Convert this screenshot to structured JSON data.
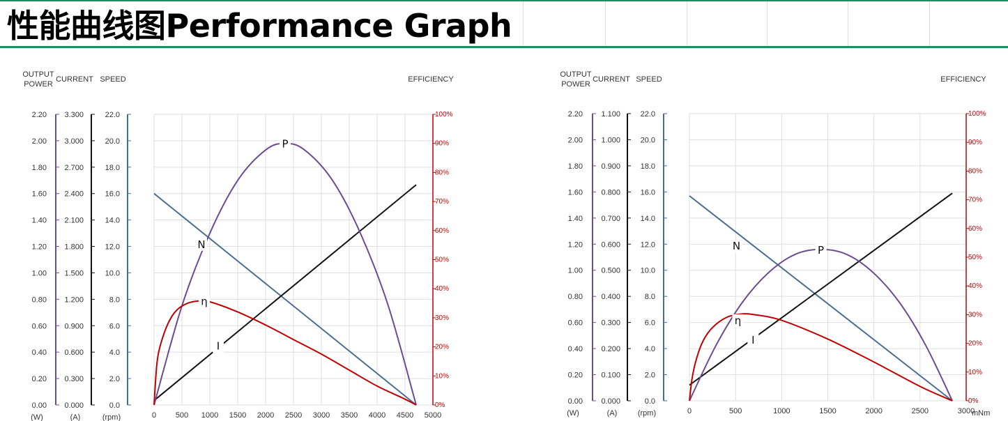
{
  "title": "性能曲线图Performance Graph",
  "colors": {
    "accent": "#1e8f5c",
    "power_axis": "#6a4c93",
    "current_axis": "#111111",
    "speed_axis": "#3f6f9a",
    "efficiency_axis": "#c00000",
    "curve_N": "#4a6f94",
    "curve_P": "#6a4c93",
    "curve_I": "#111111",
    "curve_eta": "#c00000"
  },
  "chart_data": [
    {
      "type": "line",
      "axis_titles": {
        "power": [
          "OUTPUT",
          "POWER"
        ],
        "current": "CURRENT",
        "speed": "SPEED",
        "efficiency": "EFFICIENCY"
      },
      "unit_labels": {
        "power": "(W)",
        "current": "(A)",
        "speed": "(rpm)"
      },
      "x_unit": "",
      "power_ticks": [
        "0.00",
        "0.20",
        "0.40",
        "0.60",
        "0.80",
        "1.00",
        "1.20",
        "1.40",
        "1.60",
        "1.80",
        "2.00",
        "2.20"
      ],
      "current_ticks": [
        "0.000",
        "0.300",
        "0.600",
        "0.900",
        "1.200",
        "1.500",
        "1.800",
        "2.100",
        "2.400",
        "2.700",
        "3.000",
        "3.300"
      ],
      "speed_ticks": [
        "0.0",
        "2.0",
        "4.0",
        "6.0",
        "8.0",
        "10.0",
        "12.0",
        "14.0",
        "16.0",
        "18.0",
        "20.0",
        "22.0"
      ],
      "efficiency_ticks": [
        "0%",
        "10%",
        "20%",
        "30%",
        "40%",
        "50%",
        "60%",
        "70%",
        "80%",
        "90%",
        "100%"
      ],
      "x_ticks": [
        "0",
        "500",
        "1000",
        "1500",
        "2000",
        "2500",
        "3000",
        "3500",
        "4000",
        "4500",
        "5000"
      ],
      "xlim": [
        0,
        5000
      ],
      "power_lim": [
        0,
        2.2
      ],
      "eff_lim": [
        0,
        100
      ],
      "grid": true,
      "series": [
        {
          "name": "N",
          "axis": "speed",
          "x": [
            0,
            4700
          ],
          "y": [
            16.0,
            0.0
          ]
        },
        {
          "name": "I",
          "axis": "current",
          "x": [
            0,
            4700
          ],
          "y": [
            0.05,
            2.5
          ]
        },
        {
          "name": "P",
          "axis": "power",
          "x": [
            0,
            500,
            1000,
            1500,
            2000,
            2350,
            2700,
            3200,
            3700,
            4200,
            4700
          ],
          "y": [
            0.0,
            0.75,
            1.3,
            1.7,
            1.93,
            1.98,
            1.93,
            1.7,
            1.3,
            0.75,
            0.0
          ]
        },
        {
          "name": "η",
          "axis": "efficiency",
          "x": [
            0,
            50,
            120,
            250,
            400,
            600,
            800,
            1000,
            1500,
            2000,
            2500,
            3000,
            3500,
            4000,
            4500,
            4700
          ],
          "y": [
            0,
            14,
            21,
            28,
            32.5,
            35,
            35.8,
            35.5,
            32,
            27.5,
            22.5,
            17.5,
            12,
            6.5,
            2,
            0
          ]
        }
      ],
      "curve_labels": [
        {
          "text": "P",
          "x": 2350,
          "y": 1.98,
          "axis": "power"
        },
        {
          "text": "N",
          "x": 850,
          "y": 1.22,
          "axis": "power"
        },
        {
          "text": "η",
          "x": 900,
          "y": 0.79,
          "axis": "power"
        },
        {
          "text": "I",
          "x": 1150,
          "y": 0.45,
          "axis": "power"
        }
      ]
    },
    {
      "type": "line",
      "axis_titles": {
        "power": [
          "OUTPUT",
          "POWER"
        ],
        "current": "CURRENT",
        "speed": "SPEED",
        "efficiency": "EFFICIENCY"
      },
      "unit_labels": {
        "power": "(W)",
        "current": "(A)",
        "speed": "(rpm)"
      },
      "x_unit": "mNm",
      "power_ticks": [
        "0.00",
        "0.20",
        "0.40",
        "0.60",
        "0.80",
        "1.00",
        "1.20",
        "1.40",
        "1.60",
        "1.80",
        "2.00",
        "2.20"
      ],
      "current_ticks": [
        "0.000",
        "0.100",
        "0.200",
        "0.300",
        "0.400",
        "0.500",
        "0.600",
        "0.700",
        "0.800",
        "0.900",
        "1.000",
        "1.100"
      ],
      "speed_ticks": [
        "0.0",
        "2.0",
        "4.0",
        "6.0",
        "8.0",
        "10.0",
        "12.0",
        "14.0",
        "16.0",
        "18.0",
        "20.0",
        "22.0"
      ],
      "efficiency_ticks": [
        "0%",
        "10%",
        "20%",
        "30%",
        "40%",
        "50%",
        "60%",
        "70%",
        "80%",
        "90%",
        "100%"
      ],
      "x_ticks": [
        "0",
        "500",
        "1000",
        "1500",
        "2000",
        "2500",
        "3000"
      ],
      "xlim": [
        0,
        3000
      ],
      "power_lim": [
        0,
        2.2
      ],
      "eff_lim": [
        0,
        100
      ],
      "grid": true,
      "series": [
        {
          "name": "N",
          "axis": "speed",
          "x": [
            0,
            2850
          ],
          "y": [
            15.7,
            0.0
          ]
        },
        {
          "name": "I",
          "axis": "current",
          "x": [
            0,
            2850
          ],
          "y": [
            0.06,
            0.795
          ]
        },
        {
          "name": "P",
          "axis": "power",
          "x": [
            0,
            285,
            570,
            855,
            1140,
            1425,
            1710,
            1995,
            2280,
            2565,
            2850
          ],
          "y": [
            0.0,
            0.42,
            0.75,
            0.98,
            1.12,
            1.16,
            1.12,
            0.98,
            0.75,
            0.42,
            0.0
          ]
        },
        {
          "name": "η",
          "axis": "efficiency",
          "x": [
            0,
            30,
            80,
            150,
            250,
            400,
            550,
            700,
            1000,
            1500,
            2000,
            2500,
            2850
          ],
          "y": [
            0,
            8,
            15,
            21,
            25.5,
            29,
            30.2,
            30.0,
            28,
            21.5,
            13.5,
            5,
            0
          ]
        }
      ],
      "curve_labels": [
        {
          "text": "P",
          "x": 1425,
          "y": 1.16,
          "axis": "power"
        },
        {
          "text": "N",
          "x": 510,
          "y": 1.19,
          "axis": "power"
        },
        {
          "text": "η",
          "x": 525,
          "y": 0.62,
          "axis": "power"
        },
        {
          "text": "I",
          "x": 690,
          "y": 0.47,
          "axis": "power"
        }
      ]
    }
  ]
}
